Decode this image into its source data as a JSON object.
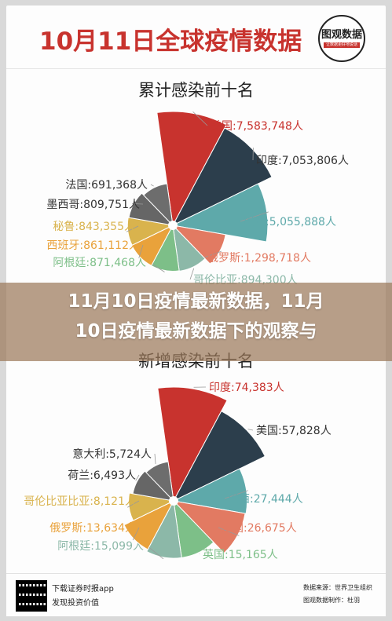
{
  "header": {
    "title": "10月11日全球疫情数据",
    "logo_text": "图观数据",
    "logo_sub": "让数据更好地说话"
  },
  "chart_data": [
    {
      "type": "pie",
      "title": "累计感染前十名",
      "slices": [
        {
          "label": "美国:7,583,748人",
          "value": 7583748,
          "color": "#c8332e"
        },
        {
          "label": "印度:7,053,806人",
          "value": 7053806,
          "color": "#2c3e4c"
        },
        {
          "label": "巴西:5,055,888人",
          "value": 5055888,
          "color": "#5ea9aa"
        },
        {
          "label": "俄罗斯:1,298,718人",
          "value": 1298718,
          "color": "#e27a62"
        },
        {
          "label": "哥伦比亚:894,300人",
          "value": 894300,
          "color": "#8cb8a8"
        },
        {
          "label": "阿根廷:871,468人",
          "value": 871468,
          "color": "#7dbf88"
        },
        {
          "label": "西班牙:861,112人",
          "value": 861112,
          "color": "#e9a23b"
        },
        {
          "label": "秘鲁:843,355人",
          "value": 843355,
          "color": "#d9b34d"
        },
        {
          "label": "墨西哥:809,751人",
          "value": 809751,
          "color": "#666666"
        },
        {
          "label": "法国:691,368人",
          "value": 691368,
          "color": "#6d6d6d"
        }
      ]
    },
    {
      "type": "pie",
      "title": "新增感染前十名",
      "slices": [
        {
          "label": "印度:74,383人",
          "value": 74383,
          "color": "#c8332e"
        },
        {
          "label": "美国:57,828人",
          "value": 57828,
          "color": "#2c3e4c"
        },
        {
          "label": "巴西:27,444人",
          "value": 27444,
          "color": "#5ea9aa"
        },
        {
          "label": "法国:26,675人",
          "value": 26675,
          "color": "#e27a62"
        },
        {
          "label": "英国:15,165人",
          "value": 15165,
          "color": "#7dbf88"
        },
        {
          "label": "阿根廷:15,099人",
          "value": 15099,
          "color": "#8cb8a8"
        },
        {
          "label": "俄罗斯:13,634人",
          "value": 13634,
          "color": "#e9a23b"
        },
        {
          "label": "哥伦比亚比亚:8,121人",
          "value": 8121,
          "color": "#d9b34d"
        },
        {
          "label": "荷兰:6,493人",
          "value": 6493,
          "color": "#666666"
        },
        {
          "label": "意大利:5,724人",
          "value": 5724,
          "color": "#6d6d6d"
        }
      ]
    }
  ],
  "banner": {
    "line1": "11月10日疫情最新数据，11月",
    "line2": "10日疫情最新数据下的观察与"
  },
  "footer": {
    "line1": "下载证券时报app",
    "line2": "发现投资价值",
    "source": "数据来源：世界卫生组织",
    "author": "图观数据制作：杜羽"
  }
}
